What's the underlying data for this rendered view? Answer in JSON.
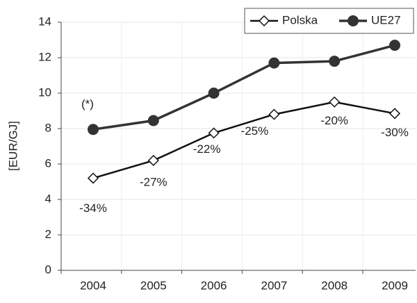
{
  "chart_data": {
    "type": "line",
    "categories": [
      "2004",
      "2005",
      "2006",
      "2007",
      "2008",
      "2009"
    ],
    "series": [
      {
        "name": "Polska",
        "color": "#111111",
        "marker": "diamond",
        "values": [
          5.2,
          6.2,
          7.75,
          8.8,
          9.5,
          8.85
        ]
      },
      {
        "name": "UE27",
        "color": "#333333",
        "marker": "circle",
        "values": [
          7.95,
          8.45,
          10.0,
          11.7,
          11.8,
          12.7
        ]
      }
    ],
    "value_annotations": [
      "-34%",
      "-27%",
      "-22%",
      "-25%",
      "-20%",
      "-30%"
    ],
    "note": "(*)",
    "y_label": "[EUR/GJ]",
    "ylim": [
      0,
      14
    ],
    "yticks": [
      0,
      2,
      4,
      6,
      8,
      10,
      12,
      14
    ],
    "grid": true,
    "legend": "top-right"
  }
}
